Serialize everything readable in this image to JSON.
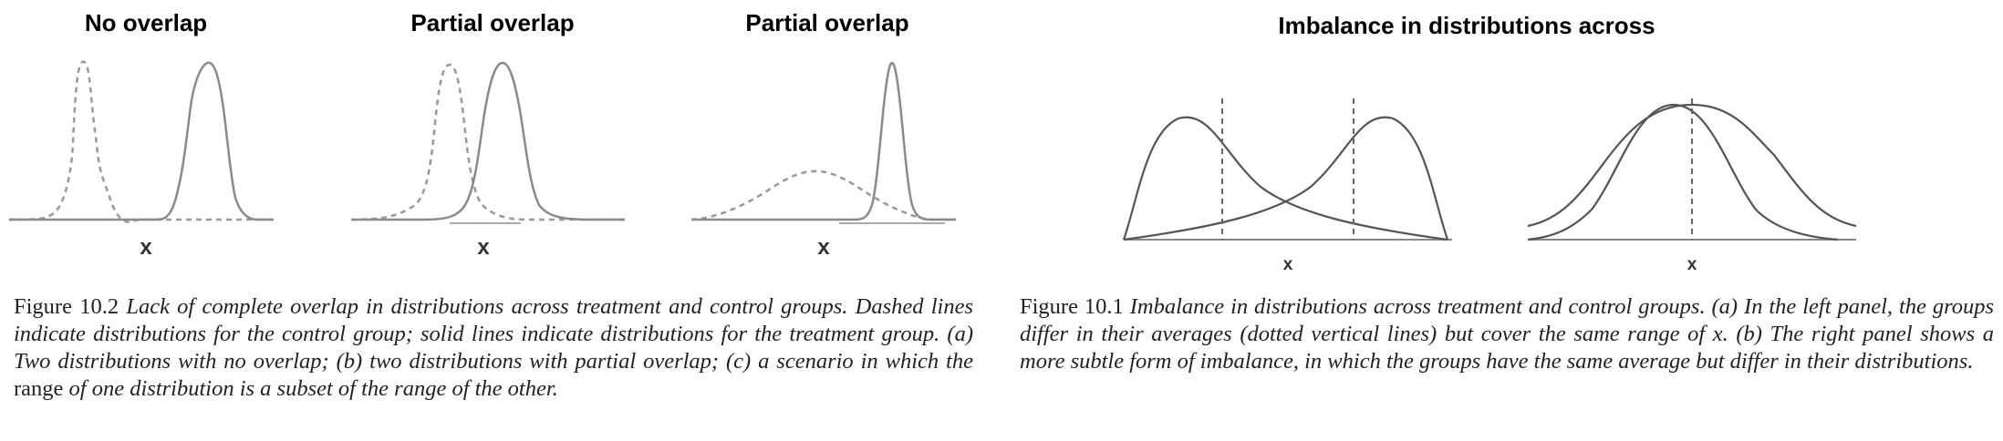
{
  "fig2": {
    "panels": [
      {
        "title": "No overlap",
        "xlabel": "x"
      },
      {
        "title": "Partial overlap",
        "xlabel": "x"
      },
      {
        "title": "Partial overlap",
        "xlabel": "x"
      }
    ],
    "caption": {
      "figure_label": "Figure 10.2",
      "text_part1": "Lack of complete overlap in distributions across treatment and control groups. Dashed lines indicate distributions for the control group; solid lines indicate distributions for the treatment group. (a) Two distributions with no overlap; (b) two distributions with partial overlap; (c) a scenario in which the",
      "upright_word": "range",
      "text_part2": "of one distribution is a subset of the range of the other."
    }
  },
  "fig1": {
    "title": "Imbalance in distributions across",
    "panels": [
      {
        "xlabel": "x"
      },
      {
        "xlabel": "x"
      }
    ],
    "caption": {
      "figure_label": "Figure 10.1",
      "text": "Imbalance in distributions across treatment and control groups. (a) In the left panel, the groups differ in their averages (dotted vertical lines) but cover the same range of x. (b) The right panel shows a more subtle form of imbalance, in which the groups have the same average but differ in their distributions."
    }
  }
}
